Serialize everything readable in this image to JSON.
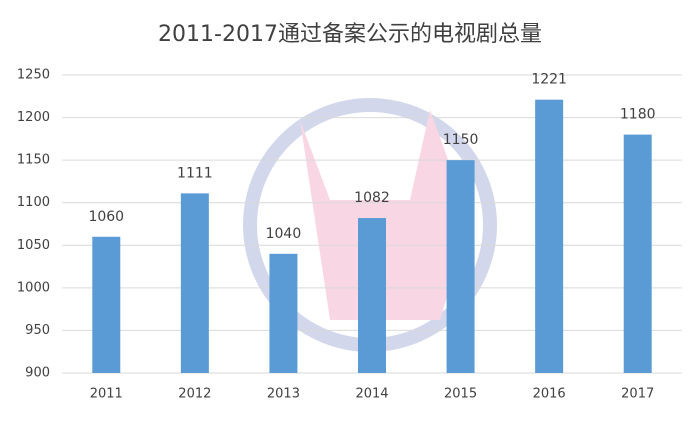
{
  "chart_data": {
    "type": "bar",
    "title": "2011-2017通过备案公示的电视剧总量",
    "categories": [
      "2011",
      "2012",
      "2013",
      "2014",
      "2015",
      "2016",
      "2017"
    ],
    "values": [
      1060,
      1111,
      1040,
      1082,
      1150,
      1221,
      1180
    ],
    "color": "#5b9bd5",
    "ylim": [
      900,
      1250
    ],
    "yticks": [
      900,
      950,
      1000,
      1050,
      1100,
      1150,
      1200,
      1250
    ],
    "grid": true
  }
}
